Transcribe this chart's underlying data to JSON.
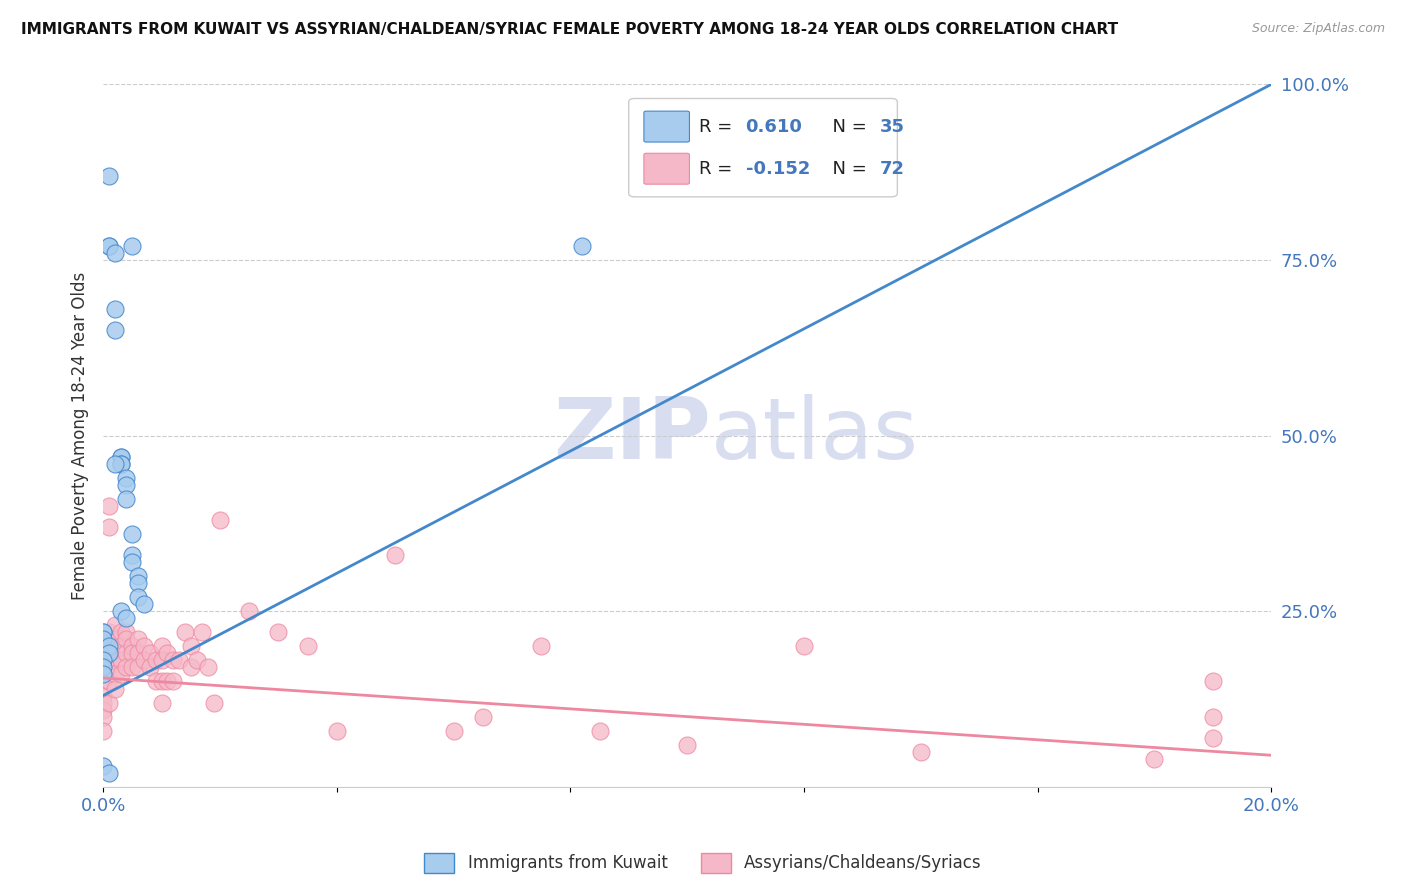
{
  "title": "IMMIGRANTS FROM KUWAIT VS ASSYRIAN/CHALDEAN/SYRIAC FEMALE POVERTY AMONG 18-24 YEAR OLDS CORRELATION CHART",
  "source": "Source: ZipAtlas.com",
  "ylabel": "Female Poverty Among 18-24 Year Olds",
  "xlim": [
    0.0,
    0.2
  ],
  "ylim": [
    0.0,
    1.0
  ],
  "x_ticks": [
    0.0,
    0.04,
    0.08,
    0.12,
    0.16,
    0.2
  ],
  "x_tick_labels": [
    "0.0%",
    "",
    "",
    "",
    "",
    "20.0%"
  ],
  "y_ticks_right": [
    0.0,
    0.25,
    0.5,
    0.75,
    1.0
  ],
  "y_tick_labels_right": [
    "",
    "25.0%",
    "50.0%",
    "75.0%",
    "100.0%"
  ],
  "legend1_label": "Immigrants from Kuwait",
  "legend2_label": "Assyrians/Chaldeans/Syriacs",
  "r1": "0.610",
  "n1": "35",
  "r2": "-0.152",
  "n2": "72",
  "color_blue": "#A8CCEE",
  "color_pink": "#F5B8C8",
  "color_blue_line": "#4488CC",
  "color_pink_line": "#EE88A0",
  "color_tick": "#4477BB",
  "watermark_zip": "ZIP",
  "watermark_atlas": "atlas",
  "blue_scatter_x": [
    0.001,
    0.005,
    0.001,
    0.001,
    0.002,
    0.002,
    0.002,
    0.003,
    0.003,
    0.003,
    0.003,
    0.004,
    0.004,
    0.004,
    0.005,
    0.005,
    0.005,
    0.006,
    0.006,
    0.006,
    0.007,
    0.002,
    0.003,
    0.004,
    0.0,
    0.0,
    0.0,
    0.001,
    0.001,
    0.0,
    0.0,
    0.0,
    0.082,
    0.0,
    0.001
  ],
  "blue_scatter_y": [
    0.87,
    0.77,
    0.77,
    0.77,
    0.76,
    0.68,
    0.65,
    0.47,
    0.47,
    0.46,
    0.46,
    0.44,
    0.43,
    0.41,
    0.36,
    0.33,
    0.32,
    0.3,
    0.29,
    0.27,
    0.26,
    0.46,
    0.25,
    0.24,
    0.22,
    0.22,
    0.21,
    0.2,
    0.19,
    0.18,
    0.17,
    0.16,
    0.77,
    0.03,
    0.02
  ],
  "pink_scatter_x": [
    0.0,
    0.0,
    0.0,
    0.0,
    0.0,
    0.0,
    0.001,
    0.001,
    0.001,
    0.001,
    0.001,
    0.001,
    0.001,
    0.001,
    0.002,
    0.002,
    0.002,
    0.002,
    0.002,
    0.003,
    0.003,
    0.003,
    0.003,
    0.004,
    0.004,
    0.004,
    0.004,
    0.005,
    0.005,
    0.005,
    0.006,
    0.006,
    0.006,
    0.007,
    0.007,
    0.008,
    0.008,
    0.009,
    0.009,
    0.01,
    0.01,
    0.01,
    0.01,
    0.011,
    0.011,
    0.012,
    0.012,
    0.013,
    0.014,
    0.015,
    0.015,
    0.016,
    0.017,
    0.018,
    0.019,
    0.02,
    0.025,
    0.03,
    0.035,
    0.04,
    0.05,
    0.06,
    0.065,
    0.075,
    0.085,
    0.1,
    0.12,
    0.14,
    0.18,
    0.19,
    0.19,
    0.19
  ],
  "pink_scatter_y": [
    0.15,
    0.13,
    0.12,
    0.11,
    0.1,
    0.08,
    0.4,
    0.37,
    0.22,
    0.2,
    0.18,
    0.17,
    0.15,
    0.12,
    0.23,
    0.21,
    0.18,
    0.16,
    0.14,
    0.22,
    0.2,
    0.18,
    0.16,
    0.22,
    0.21,
    0.19,
    0.17,
    0.2,
    0.19,
    0.17,
    0.21,
    0.19,
    0.17,
    0.2,
    0.18,
    0.19,
    0.17,
    0.18,
    0.15,
    0.2,
    0.18,
    0.15,
    0.12,
    0.19,
    0.15,
    0.18,
    0.15,
    0.18,
    0.22,
    0.2,
    0.17,
    0.18,
    0.22,
    0.17,
    0.12,
    0.38,
    0.25,
    0.22,
    0.2,
    0.08,
    0.33,
    0.08,
    0.1,
    0.2,
    0.08,
    0.06,
    0.2,
    0.05,
    0.04,
    0.15,
    0.1,
    0.07
  ],
  "blue_trendline_x": [
    0.0,
    0.2
  ],
  "blue_trendline_y": [
    0.13,
    1.0
  ],
  "pink_trendline_x": [
    0.0,
    0.2
  ],
  "pink_trendline_y": [
    0.155,
    0.045
  ]
}
